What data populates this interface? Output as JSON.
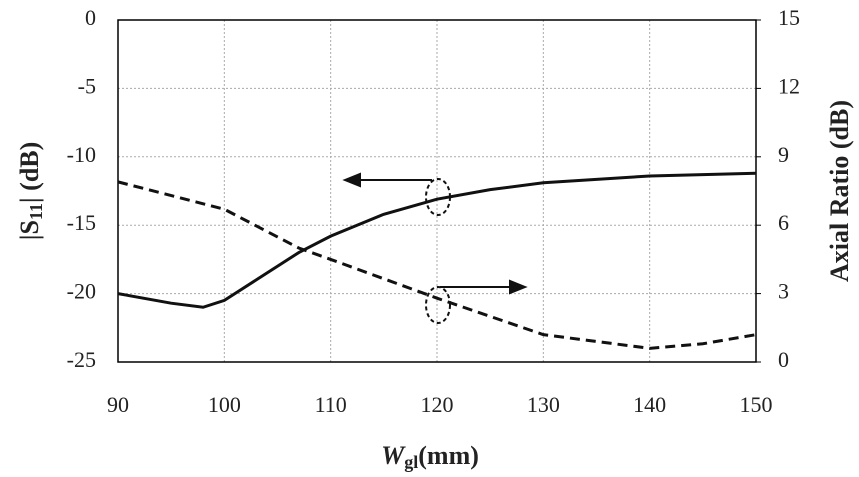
{
  "chart_data": {
    "type": "line",
    "x_label": {
      "main": "W",
      "sub": "gl",
      "suffix": "(mm)"
    },
    "y_label": {
      "prefix": "|S",
      "sub": "11",
      "suffix": "| (dB)"
    },
    "y2_label": "Axial Ratio (dB)",
    "xlim": [
      90,
      150
    ],
    "xticks": [
      90,
      100,
      110,
      120,
      130,
      140,
      150
    ],
    "ylim": [
      -25,
      0
    ],
    "yticks": [
      -25,
      -20,
      -15,
      -10,
      -5,
      0
    ],
    "y2lim": [
      0,
      15
    ],
    "y2ticks": [
      0,
      3,
      6,
      9,
      12,
      15
    ],
    "grid": true,
    "series": [
      {
        "color": "#111111",
        "style": "solid",
        "x": [
          90,
          95,
          98,
          100,
          103,
          107,
          110,
          115,
          120,
          125,
          130,
          140,
          150
        ],
        "values": [
          -20,
          -20.7,
          -21,
          -20.5,
          -19,
          -17,
          -15.8,
          -14.2,
          -13.1,
          -12.4,
          -11.9,
          -11.4,
          -11.2
        ]
      },
      {
        "color": "#111111",
        "style": "dashed",
        "axis": "y2",
        "x": [
          90,
          100,
          107,
          110,
          120,
          130,
          140,
          145,
          150
        ],
        "values": [
          7.9,
          6.7,
          5.0,
          4.5,
          2.8,
          1.2,
          0.6,
          0.8,
          1.2
        ]
      }
    ]
  }
}
